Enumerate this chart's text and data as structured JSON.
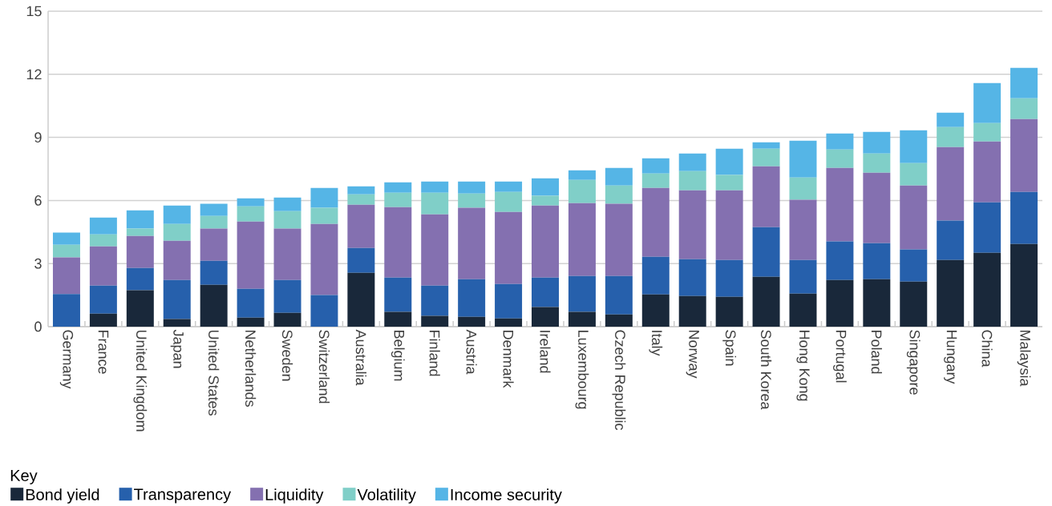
{
  "chart_data": {
    "type": "bar",
    "stacked": true,
    "legend_title": "Key",
    "legend": "bottom left",
    "grid": "y",
    "ylim": [
      0,
      15
    ],
    "yticks": [
      0,
      3,
      6,
      9,
      12,
      15
    ],
    "categories": [
      "Germany",
      "France",
      "United Kingdom",
      "Japan",
      "United States",
      "Netherlands",
      "Sweden",
      "Switzerland",
      "Australia",
      "Belgium",
      "Finland",
      "Austria",
      "Denmark",
      "Ireland",
      "Luxembourg",
      "Czech Republic",
      "Italy",
      "Norway",
      "Spain",
      "South Korea",
      "Hong Kong",
      "Portugal",
      "Poland",
      "Singapore",
      "Hungary",
      "China",
      "Malaysia"
    ],
    "series": [
      {
        "name": "Bond yield",
        "color": "#19283a",
        "values": [
          0,
          0.62,
          1.73,
          0.36,
          1.99,
          0.43,
          0.66,
          0,
          2.56,
          0.7,
          0.51,
          0.47,
          0.39,
          0.93,
          0.7,
          0.58,
          1.53,
          1.46,
          1.42,
          2.37,
          1.57,
          2.22,
          2.26,
          2.14,
          3.17,
          3.51,
          3.93
        ]
      },
      {
        "name": "Transparency",
        "color": "#2660ac",
        "values": [
          1.55,
          1.33,
          1.06,
          1.86,
          1.14,
          1.37,
          1.56,
          1.5,
          1.18,
          1.63,
          1.44,
          1.79,
          1.64,
          1.4,
          1.71,
          1.83,
          1.79,
          1.75,
          1.75,
          2.36,
          1.6,
          1.83,
          1.71,
          1.53,
          1.87,
          2.4,
          2.48
        ]
      },
      {
        "name": "Liquidity",
        "color": "#8470b0",
        "values": [
          1.74,
          1.87,
          1.52,
          1.86,
          1.53,
          3.2,
          2.44,
          3.38,
          2.06,
          3.35,
          3.39,
          3.39,
          3.42,
          3.43,
          3.46,
          3.43,
          3.28,
          3.27,
          3.31,
          2.89,
          2.86,
          3.5,
          3.35,
          3.04,
          3.5,
          2.89,
          3.46
        ]
      },
      {
        "name": "Volatility",
        "color": "#80cfc8",
        "values": [
          0.6,
          0.57,
          0.35,
          0.8,
          0.6,
          0.72,
          0.83,
          0.77,
          0.49,
          0.69,
          1.03,
          0.68,
          0.96,
          0.46,
          1.11,
          0.87,
          0.68,
          0.92,
          0.73,
          0.84,
          1.06,
          0.87,
          0.91,
          1.07,
          0.95,
          0.88,
          0.99
        ]
      },
      {
        "name": "Income security",
        "color": "#55b5e6",
        "values": [
          0.58,
          0.8,
          0.87,
          0.88,
          0.58,
          0.38,
          0.65,
          0.95,
          0.38,
          0.49,
          0.53,
          0.57,
          0.49,
          0.83,
          0.45,
          0.84,
          0.72,
          0.83,
          1.25,
          0.31,
          1.75,
          0.76,
          1.03,
          1.56,
          0.68,
          1.9,
          1.45
        ]
      }
    ]
  }
}
